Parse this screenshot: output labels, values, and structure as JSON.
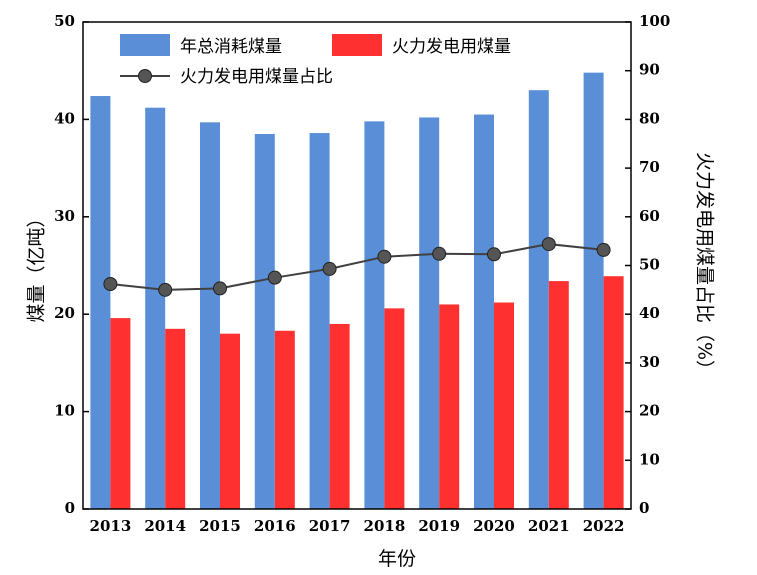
{
  "chart_data": {
    "type": "bar",
    "categories": [
      "2013",
      "2014",
      "2015",
      "2016",
      "2017",
      "2018",
      "2019",
      "2020",
      "2021",
      "2022"
    ],
    "series": [
      {
        "name": "年总消耗煤量",
        "type": "bar",
        "axis": "left",
        "color": "#5a8fd8",
        "values": [
          42.4,
          41.2,
          39.7,
          38.5,
          38.6,
          39.8,
          40.2,
          40.5,
          43.0,
          44.8
        ]
      },
      {
        "name": "火力发电用煤量",
        "type": "bar",
        "axis": "left",
        "color": "#ff3030",
        "values": [
          19.6,
          18.5,
          18.0,
          18.3,
          19.0,
          20.6,
          21.0,
          21.2,
          23.4,
          23.9
        ]
      },
      {
        "name": "火力发电用煤量占比",
        "type": "line",
        "axis": "right",
        "color": "#404040",
        "marker": "circle",
        "values": [
          46.2,
          45.0,
          45.3,
          47.5,
          49.3,
          51.8,
          52.4,
          52.3,
          54.4,
          53.2
        ]
      }
    ],
    "xlabel": "年份",
    "ylabel": "煤量（亿吨）",
    "y2label": "火力发电用煤量占比（%）",
    "ylim": [
      0,
      50
    ],
    "y2lim": [
      0,
      100
    ],
    "yticks": [
      0,
      10,
      20,
      30,
      40,
      50
    ],
    "y2ticks": [
      0,
      10,
      20,
      30,
      40,
      50,
      60,
      70,
      80,
      90,
      100
    ],
    "legend": "top-left",
    "grid": false
  }
}
